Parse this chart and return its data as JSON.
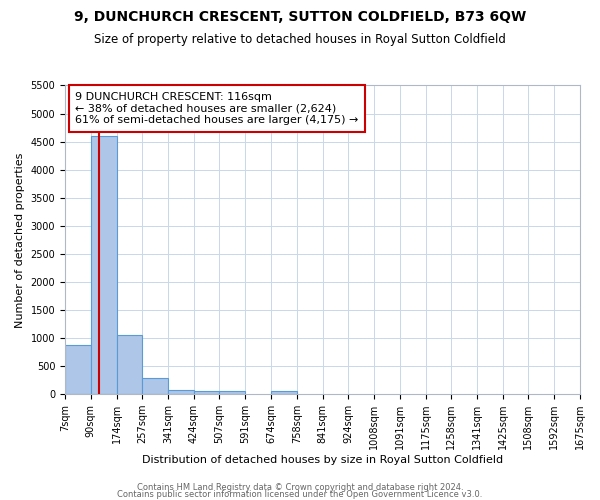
{
  "title": "9, DUNCHURCH CRESCENT, SUTTON COLDFIELD, B73 6QW",
  "subtitle": "Size of property relative to detached houses in Royal Sutton Coldfield",
  "xlabel": "Distribution of detached houses by size in Royal Sutton Coldfield",
  "ylabel": "Number of detached properties",
  "footnote1": "Contains HM Land Registry data © Crown copyright and database right 2024.",
  "footnote2": "Contains public sector information licensed under the Open Government Licence v3.0.",
  "annotation_line1": "9 DUNCHURCH CRESCENT: 116sqm",
  "annotation_line2": "← 38% of detached houses are smaller (2,624)",
  "annotation_line3": "61% of semi-detached houses are larger (4,175) →",
  "property_size": 116,
  "bar_edges": [
    7,
    90,
    174,
    257,
    341,
    424,
    507,
    591,
    674,
    758,
    841,
    924,
    1008,
    1091,
    1175,
    1258,
    1341,
    1425,
    1508,
    1592,
    1675
  ],
  "bar_heights": [
    880,
    4600,
    1050,
    290,
    80,
    60,
    60,
    0,
    60,
    0,
    0,
    0,
    0,
    0,
    0,
    0,
    0,
    0,
    0,
    0
  ],
  "bar_color": "#aec6e8",
  "bar_edge_color": "#5b9bd5",
  "vline_color": "#cc0000",
  "annotation_box_color": "#cc0000",
  "background_color": "#ffffff",
  "grid_color": "#c8d8ea",
  "title_fontsize": 10,
  "subtitle_fontsize": 8.5,
  "axis_label_fontsize": 8,
  "tick_fontsize": 7,
  "annotation_fontsize": 8,
  "footnote_fontsize": 6,
  "ylim": [
    0,
    5500
  ],
  "yticks": [
    0,
    500,
    1000,
    1500,
    2000,
    2500,
    3000,
    3500,
    4000,
    4500,
    5000,
    5500
  ]
}
